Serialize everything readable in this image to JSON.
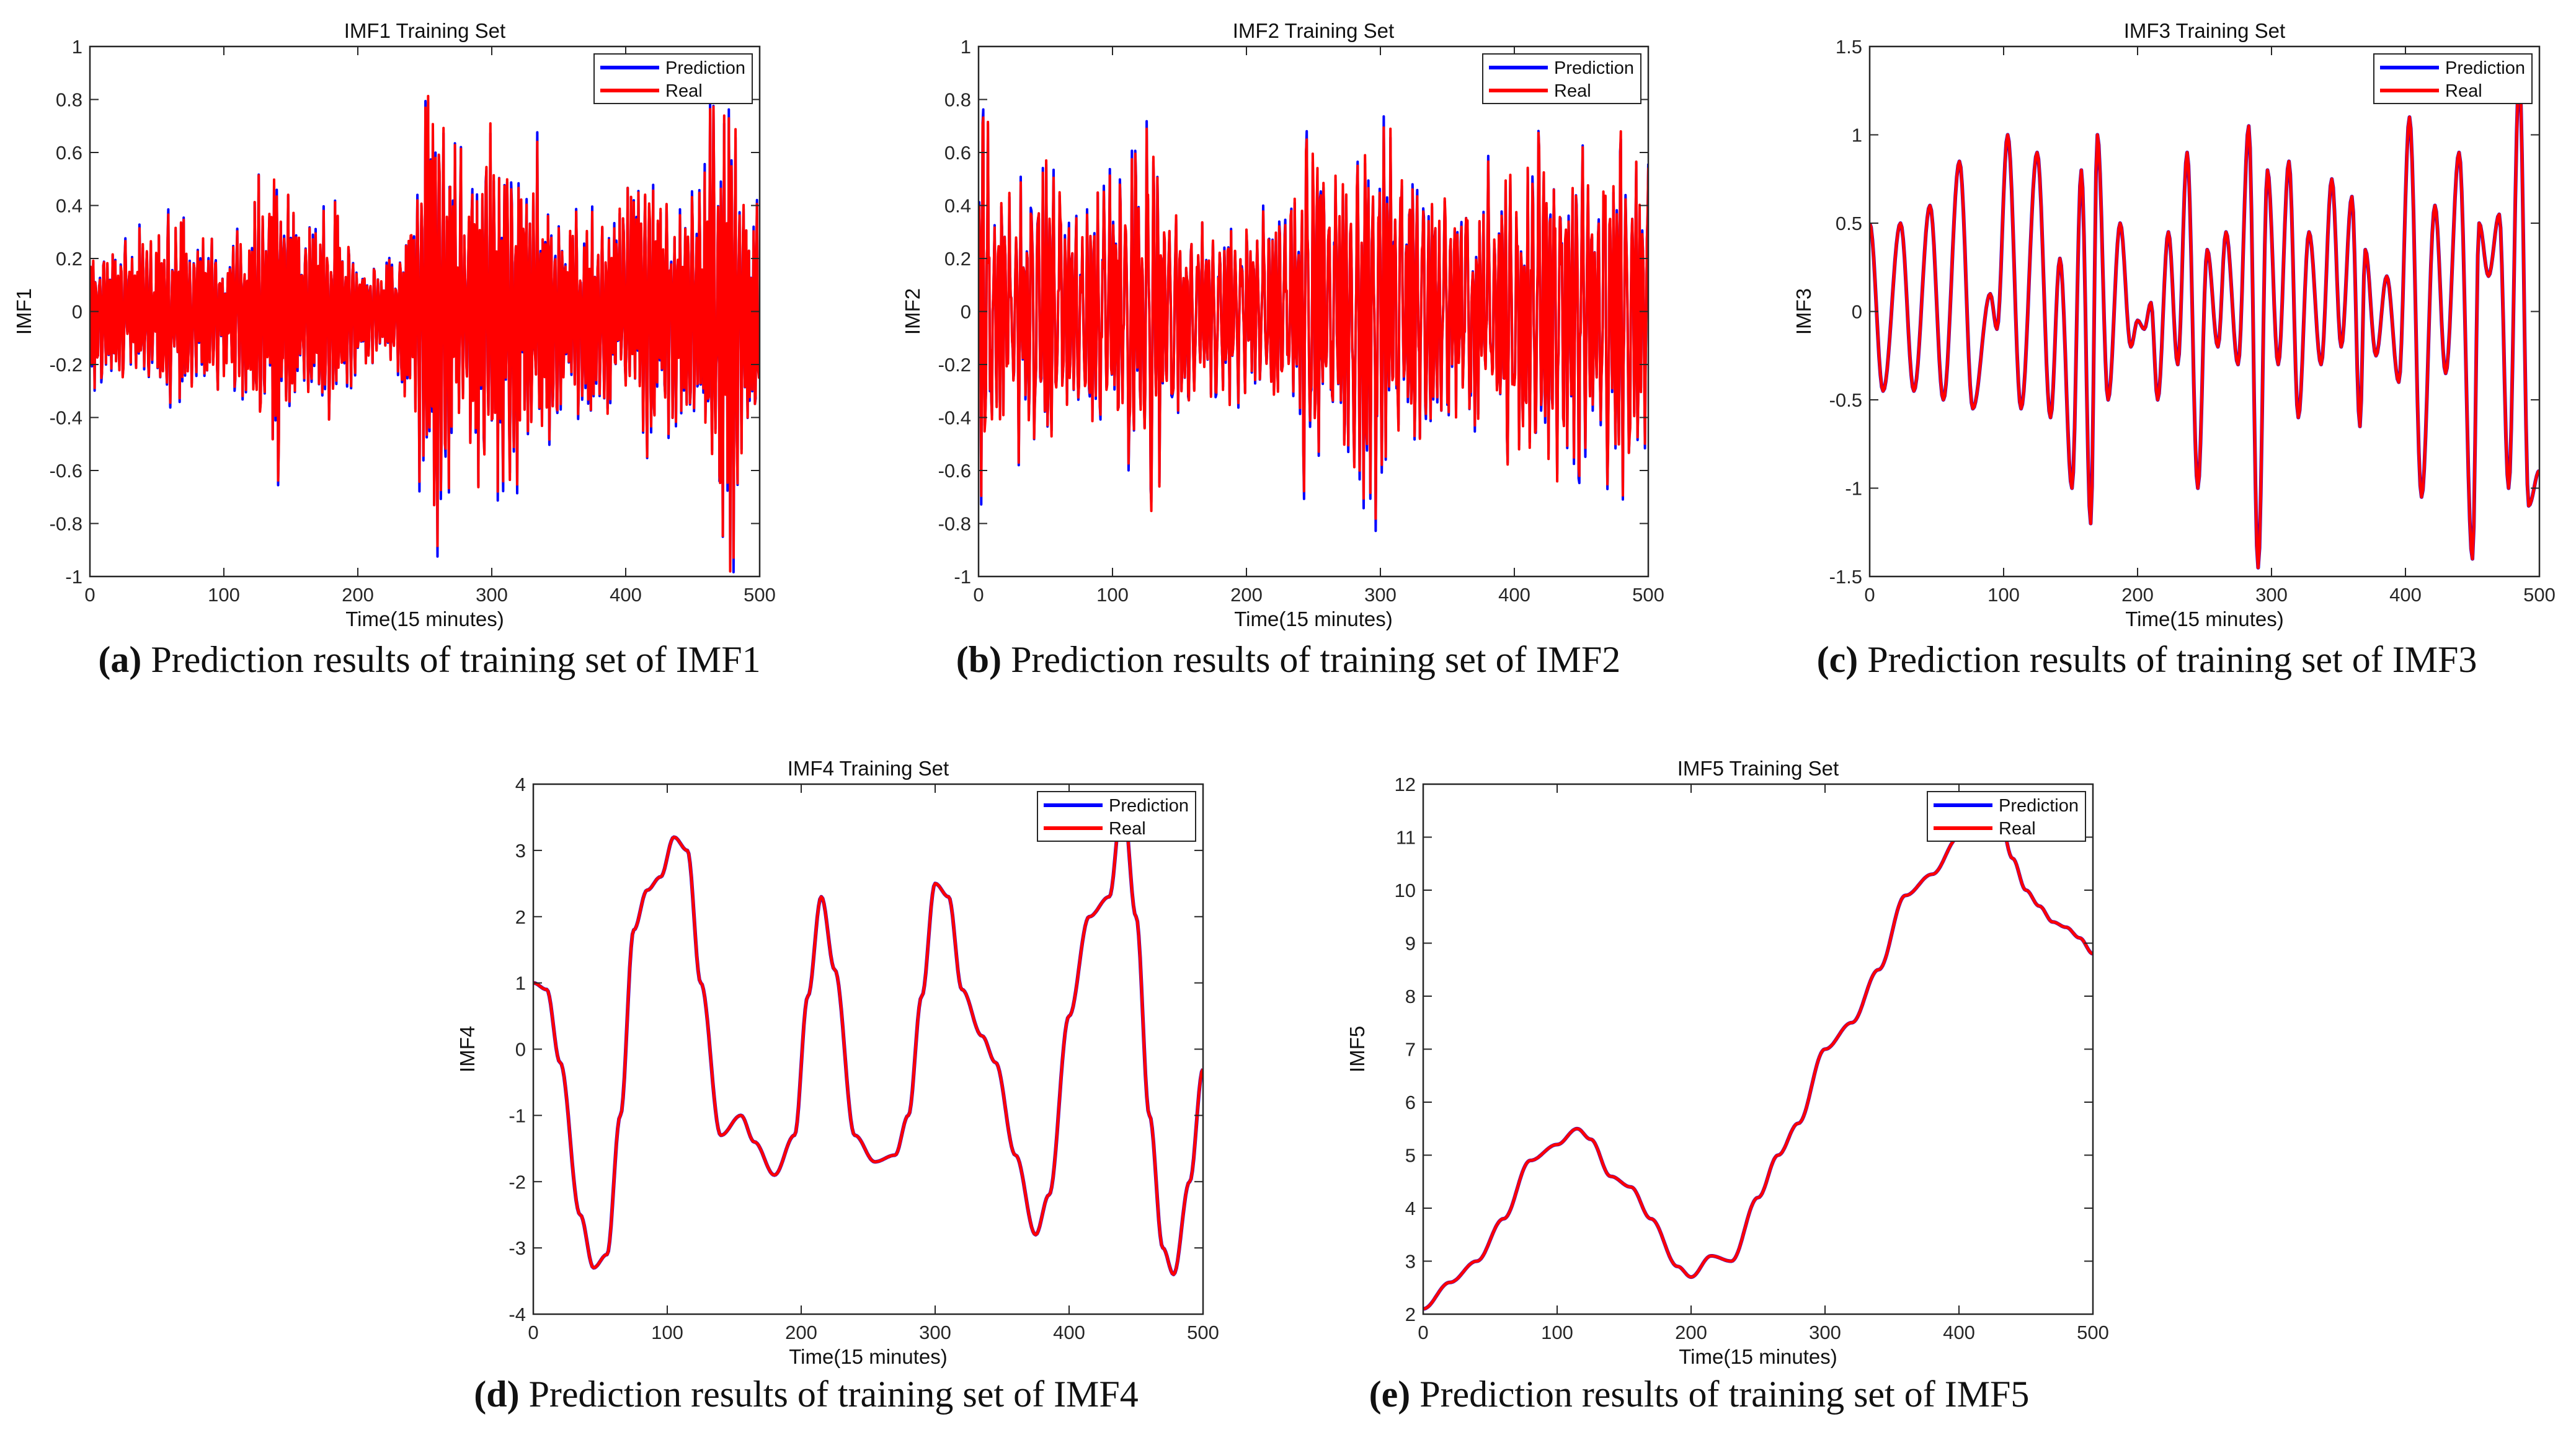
{
  "figure": {
    "colors": {
      "prediction": "#0000ff",
      "real": "#ff0000"
    },
    "captions": [
      {
        "letter": "a",
        "text": " Prediction results of training set of IMF1"
      },
      {
        "letter": "b",
        "text": " Prediction results of training set of IMF2"
      },
      {
        "letter": "c",
        "text": " Prediction results of training set of IMF3"
      },
      {
        "letter": "d",
        "text": " Prediction results of training set of IMF4"
      },
      {
        "letter": "e",
        "text": " Prediction results of training set of IMF5"
      }
    ]
  },
  "chart_data": [
    {
      "type": "line",
      "title": "IMF1 Training Set",
      "xlabel": "Time(15 minutes)",
      "ylabel": "IMF1",
      "xlim": [
        0,
        500
      ],
      "ylim": [
        -1,
        1
      ],
      "xticks": [
        "0",
        "100",
        "200",
        "300",
        "400",
        "500"
      ],
      "yticks": [
        "-1",
        "-0.8",
        "-0.6",
        "-0.4",
        "-0.2",
        "0",
        "0.2",
        "0.4",
        "0.6",
        "0.8",
        "1"
      ],
      "legend": "top-right",
      "signal": "oscillatory",
      "series": [
        {
          "name": "Prediction",
          "color": "#0000ff"
        },
        {
          "name": "Real",
          "color": "#ff0000"
        }
      ],
      "x": [
        0,
        20,
        40,
        60,
        80,
        100,
        120,
        130,
        140,
        150,
        160,
        180,
        200,
        220,
        240,
        255,
        260,
        280,
        300,
        320,
        340,
        360,
        380,
        400,
        420,
        440,
        460,
        470,
        480,
        490,
        500
      ],
      "envelope": [
        0.25,
        0.25,
        0.3,
        0.35,
        0.25,
        0.25,
        0.3,
        0.5,
        0.55,
        0.45,
        0.35,
        0.4,
        0.2,
        0.15,
        0.35,
        0.9,
        0.85,
        0.5,
        0.65,
        0.6,
        0.45,
        0.3,
        0.35,
        0.4,
        0.5,
        0.4,
        0.6,
        0.85,
        0.9,
        0.45,
        0.3
      ]
    },
    {
      "type": "line",
      "title": "IMF2 Training Set",
      "xlabel": "Time(15 minutes)",
      "ylabel": "IMF2",
      "xlim": [
        0,
        500
      ],
      "ylim": [
        -1,
        1
      ],
      "xticks": [
        "0",
        "100",
        "200",
        "300",
        "400",
        "500"
      ],
      "yticks": [
        "-1",
        "-0.8",
        "-0.6",
        "-0.4",
        "-0.2",
        "0",
        "0.2",
        "0.4",
        "0.6",
        "0.8",
        "1"
      ],
      "legend": "top-right",
      "signal": "oscillatory",
      "series": [
        {
          "name": "Prediction",
          "color": "#0000ff"
        },
        {
          "name": "Real",
          "color": "#ff0000"
        }
      ],
      "x": [
        0,
        10,
        20,
        40,
        60,
        80,
        100,
        120,
        130,
        140,
        160,
        180,
        200,
        220,
        240,
        250,
        260,
        280,
        300,
        320,
        340,
        360,
        380,
        400,
        420,
        440,
        460,
        470,
        480,
        500
      ],
      "envelope": [
        0.8,
        0.6,
        0.4,
        0.5,
        0.4,
        0.35,
        0.55,
        0.5,
        0.75,
        0.4,
        0.35,
        0.3,
        0.3,
        0.3,
        0.5,
        0.75,
        0.45,
        0.55,
        0.7,
        0.5,
        0.4,
        0.35,
        0.45,
        0.5,
        0.6,
        0.55,
        0.5,
        0.7,
        0.6,
        0.5
      ]
    },
    {
      "type": "line",
      "title": "IMF3 Training Set",
      "xlabel": "Time(15 minutes)",
      "ylabel": "IMF3",
      "xlim": [
        0,
        500
      ],
      "ylim": [
        -1.5,
        1.5
      ],
      "xticks": [
        "0",
        "100",
        "200",
        "300",
        "400",
        "500"
      ],
      "yticks": [
        "-1.5",
        "-1",
        "-0.5",
        "0",
        "0.5",
        "1",
        "1.5"
      ],
      "legend": "top-right",
      "series": [
        {
          "name": "Prediction",
          "color": "#0000ff"
        },
        {
          "name": "Real",
          "color": "#ff0000"
        }
      ],
      "x": [
        0,
        10,
        23,
        33,
        45,
        55,
        67,
        77,
        90,
        95,
        103,
        113,
        125,
        135,
        142,
        151,
        158,
        165,
        170,
        178,
        187,
        195,
        200,
        205,
        210,
        215,
        223,
        230,
        237,
        245,
        252,
        260,
        266,
        275,
        283,
        290,
        297,
        305,
        313,
        320,
        328,
        337,
        345,
        352,
        360,
        366,
        370,
        378,
        386,
        395,
        403,
        412,
        422,
        430,
        440,
        450,
        455,
        462,
        470,
        477,
        485,
        492,
        500
      ],
      "y": [
        0.5,
        -0.45,
        0.5,
        -0.45,
        0.6,
        -0.5,
        0.85,
        -0.55,
        0.1,
        -0.1,
        1.0,
        -0.55,
        0.9,
        -0.6,
        0.3,
        -1.0,
        0.8,
        -1.2,
        1.0,
        -0.5,
        0.5,
        -0.2,
        -0.05,
        -0.1,
        0.05,
        -0.5,
        0.45,
        -0.3,
        0.9,
        -1.0,
        0.35,
        -0.2,
        0.45,
        -0.3,
        1.05,
        -1.45,
        0.8,
        -0.3,
        0.85,
        -0.6,
        0.45,
        -0.3,
        0.75,
        -0.2,
        0.65,
        -0.65,
        0.35,
        -0.25,
        0.2,
        -0.4,
        1.1,
        -1.05,
        0.6,
        -0.35,
        0.9,
        -1.4,
        0.5,
        0.2,
        0.55,
        -1.0,
        1.35,
        -1.1,
        -0.9
      ]
    },
    {
      "type": "line",
      "title": "IMF4 Training Set",
      "xlabel": "Time(15 minutes)",
      "ylabel": "IMF4",
      "xlim": [
        0,
        500
      ],
      "ylim": [
        -4,
        4
      ],
      "xticks": [
        "0",
        "100",
        "200",
        "300",
        "400",
        "500"
      ],
      "yticks": [
        "-4",
        "-3",
        "-2",
        "-1",
        "0",
        "1",
        "2",
        "3",
        "4"
      ],
      "legend": "top-right",
      "series": [
        {
          "name": "Prediction",
          "color": "#0000ff"
        },
        {
          "name": "Real",
          "color": "#ff0000"
        }
      ],
      "x": [
        0,
        10,
        20,
        35,
        45,
        55,
        65,
        75,
        85,
        95,
        105,
        115,
        125,
        140,
        155,
        165,
        180,
        195,
        205,
        215,
        225,
        240,
        255,
        270,
        280,
        290,
        300,
        310,
        320,
        335,
        345,
        360,
        375,
        385,
        400,
        415,
        430,
        440,
        450,
        460,
        470,
        478,
        490,
        500
      ],
      "y": [
        1.0,
        0.9,
        -0.2,
        -2.5,
        -3.3,
        -3.1,
        -1.0,
        1.8,
        2.4,
        2.6,
        3.2,
        3.0,
        1.0,
        -1.3,
        -1.0,
        -1.4,
        -1.9,
        -1.3,
        0.8,
        2.3,
        1.2,
        -1.3,
        -1.7,
        -1.6,
        -1.0,
        0.8,
        2.5,
        2.3,
        0.9,
        0.2,
        -0.2,
        -1.6,
        -2.8,
        -2.2,
        0.5,
        2.0,
        2.3,
        3.8,
        2.0,
        -1.0,
        -3.0,
        -3.4,
        -2.0,
        -0.3
      ]
    },
    {
      "type": "line",
      "title": "IMF5 Training Set",
      "xlabel": "Time(15 minutes)",
      "ylabel": "IMF5",
      "xlim": [
        0,
        500
      ],
      "ylim": [
        2,
        12
      ],
      "xticks": [
        "0",
        "100",
        "200",
        "300",
        "400",
        "500"
      ],
      "yticks": [
        "2",
        "3",
        "4",
        "5",
        "6",
        "7",
        "8",
        "9",
        "10",
        "11",
        "12"
      ],
      "legend": "top-right",
      "series": [
        {
          "name": "Prediction",
          "color": "#0000ff"
        },
        {
          "name": "Real",
          "color": "#ff0000"
        }
      ],
      "x": [
        0,
        20,
        40,
        60,
        80,
        100,
        115,
        125,
        140,
        155,
        170,
        190,
        200,
        215,
        230,
        250,
        265,
        280,
        300,
        320,
        340,
        360,
        380,
        400,
        415,
        430,
        440,
        450,
        460,
        470,
        480,
        490,
        500
      ],
      "y": [
        2.1,
        2.6,
        3.0,
        3.8,
        4.9,
        5.2,
        5.5,
        5.3,
        4.6,
        4.4,
        3.8,
        2.9,
        2.7,
        3.1,
        3.0,
        4.2,
        5.0,
        5.6,
        7.0,
        7.5,
        8.5,
        9.9,
        10.3,
        11.0,
        11.7,
        11.4,
        10.6,
        10.0,
        9.7,
        9.4,
        9.3,
        9.1,
        8.8
      ]
    }
  ]
}
